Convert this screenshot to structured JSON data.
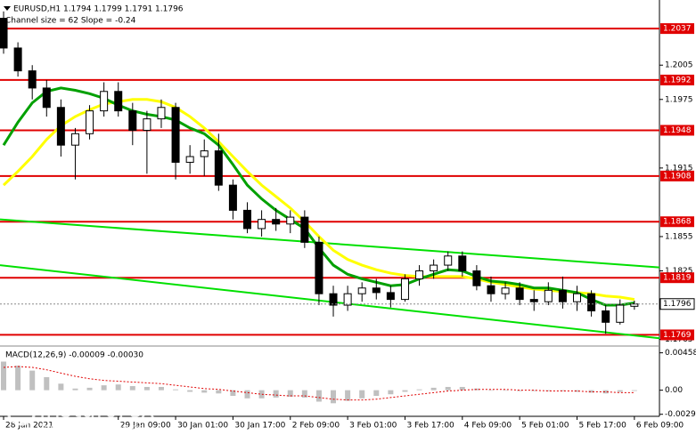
{
  "header": {
    "symbol_line": "EURUSD,H1  1.1794 1.1799 1.1791 1.1796",
    "indicator_line": "Channel size = 62 Slope = -0.24"
  },
  "watermark": {
    "name": "instaforex",
    "tagline": "Instant Forex Trading"
  },
  "chart_data": [
    {
      "type": "candlestick",
      "color": "#000000",
      "x": [
        0,
        4,
        8,
        12,
        16,
        20,
        24,
        28,
        32,
        36,
        40,
        44,
        48,
        52,
        56,
        60,
        64,
        68,
        72,
        76,
        80,
        84,
        88,
        92,
        96,
        100,
        104,
        108,
        112,
        116,
        120,
        124,
        128,
        132,
        136,
        140,
        144,
        148,
        152,
        156,
        160,
        164,
        168,
        172,
        176
      ],
      "open": [
        1.2046,
        1.202,
        1.2,
        1.1985,
        1.1968,
        1.1935,
        1.1945,
        1.1965,
        1.1982,
        1.1965,
        1.1948,
        1.1958,
        1.1968,
        1.192,
        1.1925,
        1.193,
        1.19,
        1.1878,
        1.1862,
        1.187,
        1.1866,
        1.1872,
        1.185,
        1.1805,
        1.1795,
        1.1805,
        1.181,
        1.1806,
        1.18,
        1.1818,
        1.1825,
        1.183,
        1.1838,
        1.1825,
        1.1812,
        1.1805,
        1.181,
        1.18,
        1.1798,
        1.1808,
        1.1798,
        1.1805,
        1.179,
        1.178,
        1.1794
      ],
      "high": [
        1.2052,
        1.2025,
        1.2005,
        1.1992,
        1.1975,
        1.195,
        1.197,
        1.199,
        1.199,
        1.1972,
        1.1965,
        1.1975,
        1.1972,
        1.1935,
        1.194,
        1.1945,
        1.1905,
        1.1885,
        1.1878,
        1.188,
        1.1878,
        1.1878,
        1.1855,
        1.1812,
        1.1812,
        1.1815,
        1.1818,
        1.1812,
        1.1822,
        1.183,
        1.1835,
        1.1842,
        1.1842,
        1.183,
        1.182,
        1.1815,
        1.1815,
        1.1808,
        1.1815,
        1.182,
        1.1812,
        1.1808,
        1.1795,
        1.18,
        1.1799
      ],
      "low": [
        1.2015,
        1.1995,
        1.1975,
        1.196,
        1.1925,
        1.1905,
        1.194,
        1.196,
        1.196,
        1.1935,
        1.191,
        1.195,
        1.1905,
        1.191,
        1.1908,
        1.1895,
        1.187,
        1.1858,
        1.1855,
        1.186,
        1.1858,
        1.1845,
        1.1795,
        1.1785,
        1.179,
        1.1798,
        1.18,
        1.1793,
        1.1798,
        1.1812,
        1.1818,
        1.1825,
        1.182,
        1.1808,
        1.1798,
        1.18,
        1.1795,
        1.179,
        1.1795,
        1.1792,
        1.179,
        1.1785,
        1.177,
        1.1778,
        1.1791
      ],
      "close": [
        1.202,
        1.2,
        1.1985,
        1.1968,
        1.1935,
        1.1945,
        1.1965,
        1.1982,
        1.1965,
        1.1948,
        1.1958,
        1.1968,
        1.192,
        1.1925,
        1.193,
        1.19,
        1.1878,
        1.1862,
        1.187,
        1.1866,
        1.1872,
        1.185,
        1.1805,
        1.1795,
        1.1805,
        1.181,
        1.1806,
        1.18,
        1.1818,
        1.1825,
        1.183,
        1.1838,
        1.1825,
        1.1812,
        1.1805,
        1.181,
        1.18,
        1.1798,
        1.1808,
        1.1798,
        1.1805,
        1.179,
        1.178,
        1.1795,
        1.1796
      ],
      "overlays": [
        {
          "color": "#ffff00",
          "values": [
            1.19,
            1.1912,
            1.1925,
            1.194,
            1.1952,
            1.196,
            1.1966,
            1.1971,
            1.1973,
            1.1975,
            1.1975,
            1.1973,
            1.1968,
            1.196,
            1.195,
            1.1938,
            1.1925,
            1.1912,
            1.19,
            1.189,
            1.188,
            1.1868,
            1.1855,
            1.1843,
            1.1835,
            1.183,
            1.1826,
            1.1823,
            1.1821,
            1.182,
            1.182,
            1.182,
            1.182,
            1.1818,
            1.1815,
            1.1813,
            1.1811,
            1.1809,
            1.1808,
            1.1807,
            1.1806,
            1.1805,
            1.1803,
            1.1802,
            1.18
          ]
        },
        {
          "color": "#00a000",
          "values": [
            1.1935,
            1.1955,
            1.1972,
            1.1982,
            1.1985,
            1.1983,
            1.198,
            1.1976,
            1.197,
            1.1965,
            1.1962,
            1.196,
            1.1957,
            1.195,
            1.1945,
            1.1935,
            1.1918,
            1.19,
            1.1888,
            1.1878,
            1.187,
            1.1862,
            1.1845,
            1.183,
            1.1822,
            1.1818,
            1.1815,
            1.1812,
            1.1813,
            1.1818,
            1.1822,
            1.1826,
            1.1825,
            1.182,
            1.1816,
            1.1815,
            1.1813,
            1.181,
            1.181,
            1.1808,
            1.1806,
            1.18,
            1.1795,
            1.1795,
            1.1797
          ]
        }
      ],
      "channel_lines": [
        {
          "color": "#00e000",
          "x": [
            -1,
            183
          ],
          "values": [
            1.187,
            1.1828
          ]
        },
        {
          "color": "#00e000",
          "x": [
            -1,
            183
          ],
          "values": [
            1.183,
            1.1766
          ]
        }
      ],
      "levels": {
        "color": "#e00000",
        "values": [
          1.2037,
          1.1992,
          1.1948,
          1.1908,
          1.1868,
          1.1819,
          1.1769
        ]
      },
      "last_price": 1.1796,
      "xlim": [
        -1,
        183
      ],
      "xticks": [
        {
          "value": 0,
          "label": "28 Jan 2021"
        },
        {
          "value": 32,
          "label": "29 Jan 09:00"
        },
        {
          "value": 48,
          "label": "30 Jan 01:00"
        },
        {
          "value": 64,
          "label": "30 Jan 17:00"
        },
        {
          "value": 80,
          "label": "2 Feb 09:00"
        },
        {
          "value": 96,
          "label": "3 Feb 01:00"
        },
        {
          "value": 112,
          "label": "3 Feb 17:00"
        },
        {
          "value": 128,
          "label": "4 Feb 09:00"
        },
        {
          "value": 144,
          "label": "5 Feb 01:00"
        },
        {
          "value": 160,
          "label": "5 Feb 17:00"
        },
        {
          "value": 176,
          "label": "6 Feb 09:00"
        }
      ],
      "ylim": [
        1.176,
        1.2062
      ],
      "yticks": [
        1.2005,
        1.1975,
        1.1915,
        1.1855,
        1.1825,
        1.1765
      ]
    },
    {
      "type": "bar",
      "title": "MACD(12,26,9) -0.00009 -0.00030",
      "color": "#c0c0c0",
      "x": [
        0,
        4,
        8,
        12,
        16,
        20,
        24,
        28,
        32,
        36,
        40,
        44,
        48,
        52,
        56,
        60,
        64,
        68,
        72,
        76,
        80,
        84,
        88,
        92,
        96,
        100,
        104,
        108,
        112,
        116,
        120,
        124,
        128,
        132,
        136,
        140,
        144,
        148,
        152,
        156,
        160,
        164,
        168,
        172,
        176
      ],
      "values": [
        0.0035,
        0.003,
        0.0024,
        0.0016,
        0.0008,
        0.0002,
        0.0003,
        0.0006,
        0.0007,
        0.0005,
        0.0004,
        0.0004,
        0.0001,
        -0.0002,
        -0.0003,
        -0.0004,
        -0.0007,
        -0.001,
        -0.001,
        -0.0009,
        -0.0008,
        -0.0009,
        -0.0014,
        -0.0016,
        -0.0013,
        -0.001,
        -0.0007,
        -0.0005,
        -0.0002,
        0.0001,
        0.0003,
        0.0004,
        0.0004,
        0.0002,
        0.0,
        0.0,
        -0.0001,
        -0.0001,
        -0.0001,
        -0.0001,
        -0.0002,
        -0.0003,
        -0.0004,
        -0.0002,
        -9e-05
      ],
      "signal": {
        "color": "#e00000",
        "values": [
          0.0028,
          0.0029,
          0.0028,
          0.0025,
          0.0021,
          0.0017,
          0.0014,
          0.0012,
          0.0011,
          0.001,
          0.0009,
          0.0008,
          0.0006,
          0.0004,
          0.0002,
          0.0001,
          -0.0001,
          -0.0003,
          -0.0005,
          -0.0006,
          -0.0007,
          -0.0007,
          -0.0009,
          -0.0011,
          -0.0012,
          -0.0012,
          -0.0011,
          -0.0009,
          -0.0007,
          -0.0005,
          -0.0003,
          -0.0001,
          0.0,
          0.0001,
          0.0001,
          0.0001,
          0.0,
          0.0,
          -0.0001,
          -0.0001,
          -0.0001,
          -0.0002,
          -0.0002,
          -0.0003,
          -0.0003
        ]
      },
      "xlim": [
        -1,
        183
      ],
      "ylim": [
        -0.0032,
        0.0053
      ],
      "yticks": [
        0.00458,
        {
          "value": 0,
          "label": "0.00"
        },
        -0.00295
      ]
    }
  ]
}
